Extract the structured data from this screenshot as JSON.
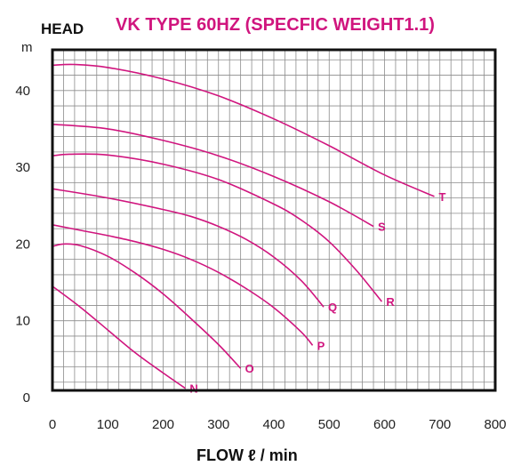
{
  "chart_data": {
    "type": "line",
    "title": "VK TYPE 60HZ (SPECFIC WEIGHT1.1)",
    "ylabel": "HEAD",
    "yunit": "m",
    "xlabel": "FLOW ℓ / min",
    "xlim": [
      0,
      800
    ],
    "ylim": [
      0,
      47
    ],
    "xticks": [
      0,
      100,
      200,
      300,
      400,
      500,
      600,
      700,
      800
    ],
    "yticks": [
      0,
      10,
      20,
      30,
      40
    ],
    "grid": true,
    "legend": "none",
    "color": "#d0157e",
    "series": [
      {
        "name": "N",
        "x": [
          0,
          50,
          100,
          150,
          200,
          240
        ],
        "y": [
          14.5,
          11.8,
          8.8,
          5.8,
          3.2,
          1.2
        ]
      },
      {
        "name": "O",
        "x": [
          0,
          20,
          50,
          100,
          150,
          200,
          250,
          300,
          340
        ],
        "y": [
          19.7,
          20.0,
          19.8,
          18.4,
          16.2,
          13.5,
          10.3,
          6.9,
          3.8
        ]
      },
      {
        "name": "P",
        "x": [
          0,
          50,
          100,
          150,
          200,
          250,
          300,
          350,
          400,
          450,
          470
        ],
        "y": [
          22.5,
          21.8,
          21.1,
          20.3,
          19.3,
          18.0,
          16.3,
          14.2,
          11.7,
          8.5,
          6.8
        ]
      },
      {
        "name": "Q",
        "x": [
          0,
          100,
          200,
          250,
          300,
          350,
          400,
          450,
          490
        ],
        "y": [
          27.2,
          26.0,
          24.5,
          23.6,
          22.3,
          20.6,
          18.3,
          15.2,
          11.8
        ]
      },
      {
        "name": "R",
        "x": [
          0,
          30,
          100,
          200,
          300,
          400,
          450,
          500,
          550,
          595
        ],
        "y": [
          31.5,
          31.7,
          31.6,
          30.4,
          28.4,
          25.2,
          23.1,
          20.3,
          16.5,
          12.5
        ]
      },
      {
        "name": "S",
        "x": [
          0,
          100,
          200,
          300,
          400,
          500,
          580
        ],
        "y": [
          35.6,
          35.0,
          33.5,
          31.5,
          28.8,
          25.5,
          22.3
        ]
      },
      {
        "name": "T",
        "x": [
          0,
          40,
          100,
          200,
          300,
          400,
          500,
          600,
          690
        ],
        "y": [
          43.3,
          43.4,
          43.0,
          41.5,
          39.3,
          36.3,
          32.8,
          29.0,
          26.2
        ]
      }
    ]
  }
}
